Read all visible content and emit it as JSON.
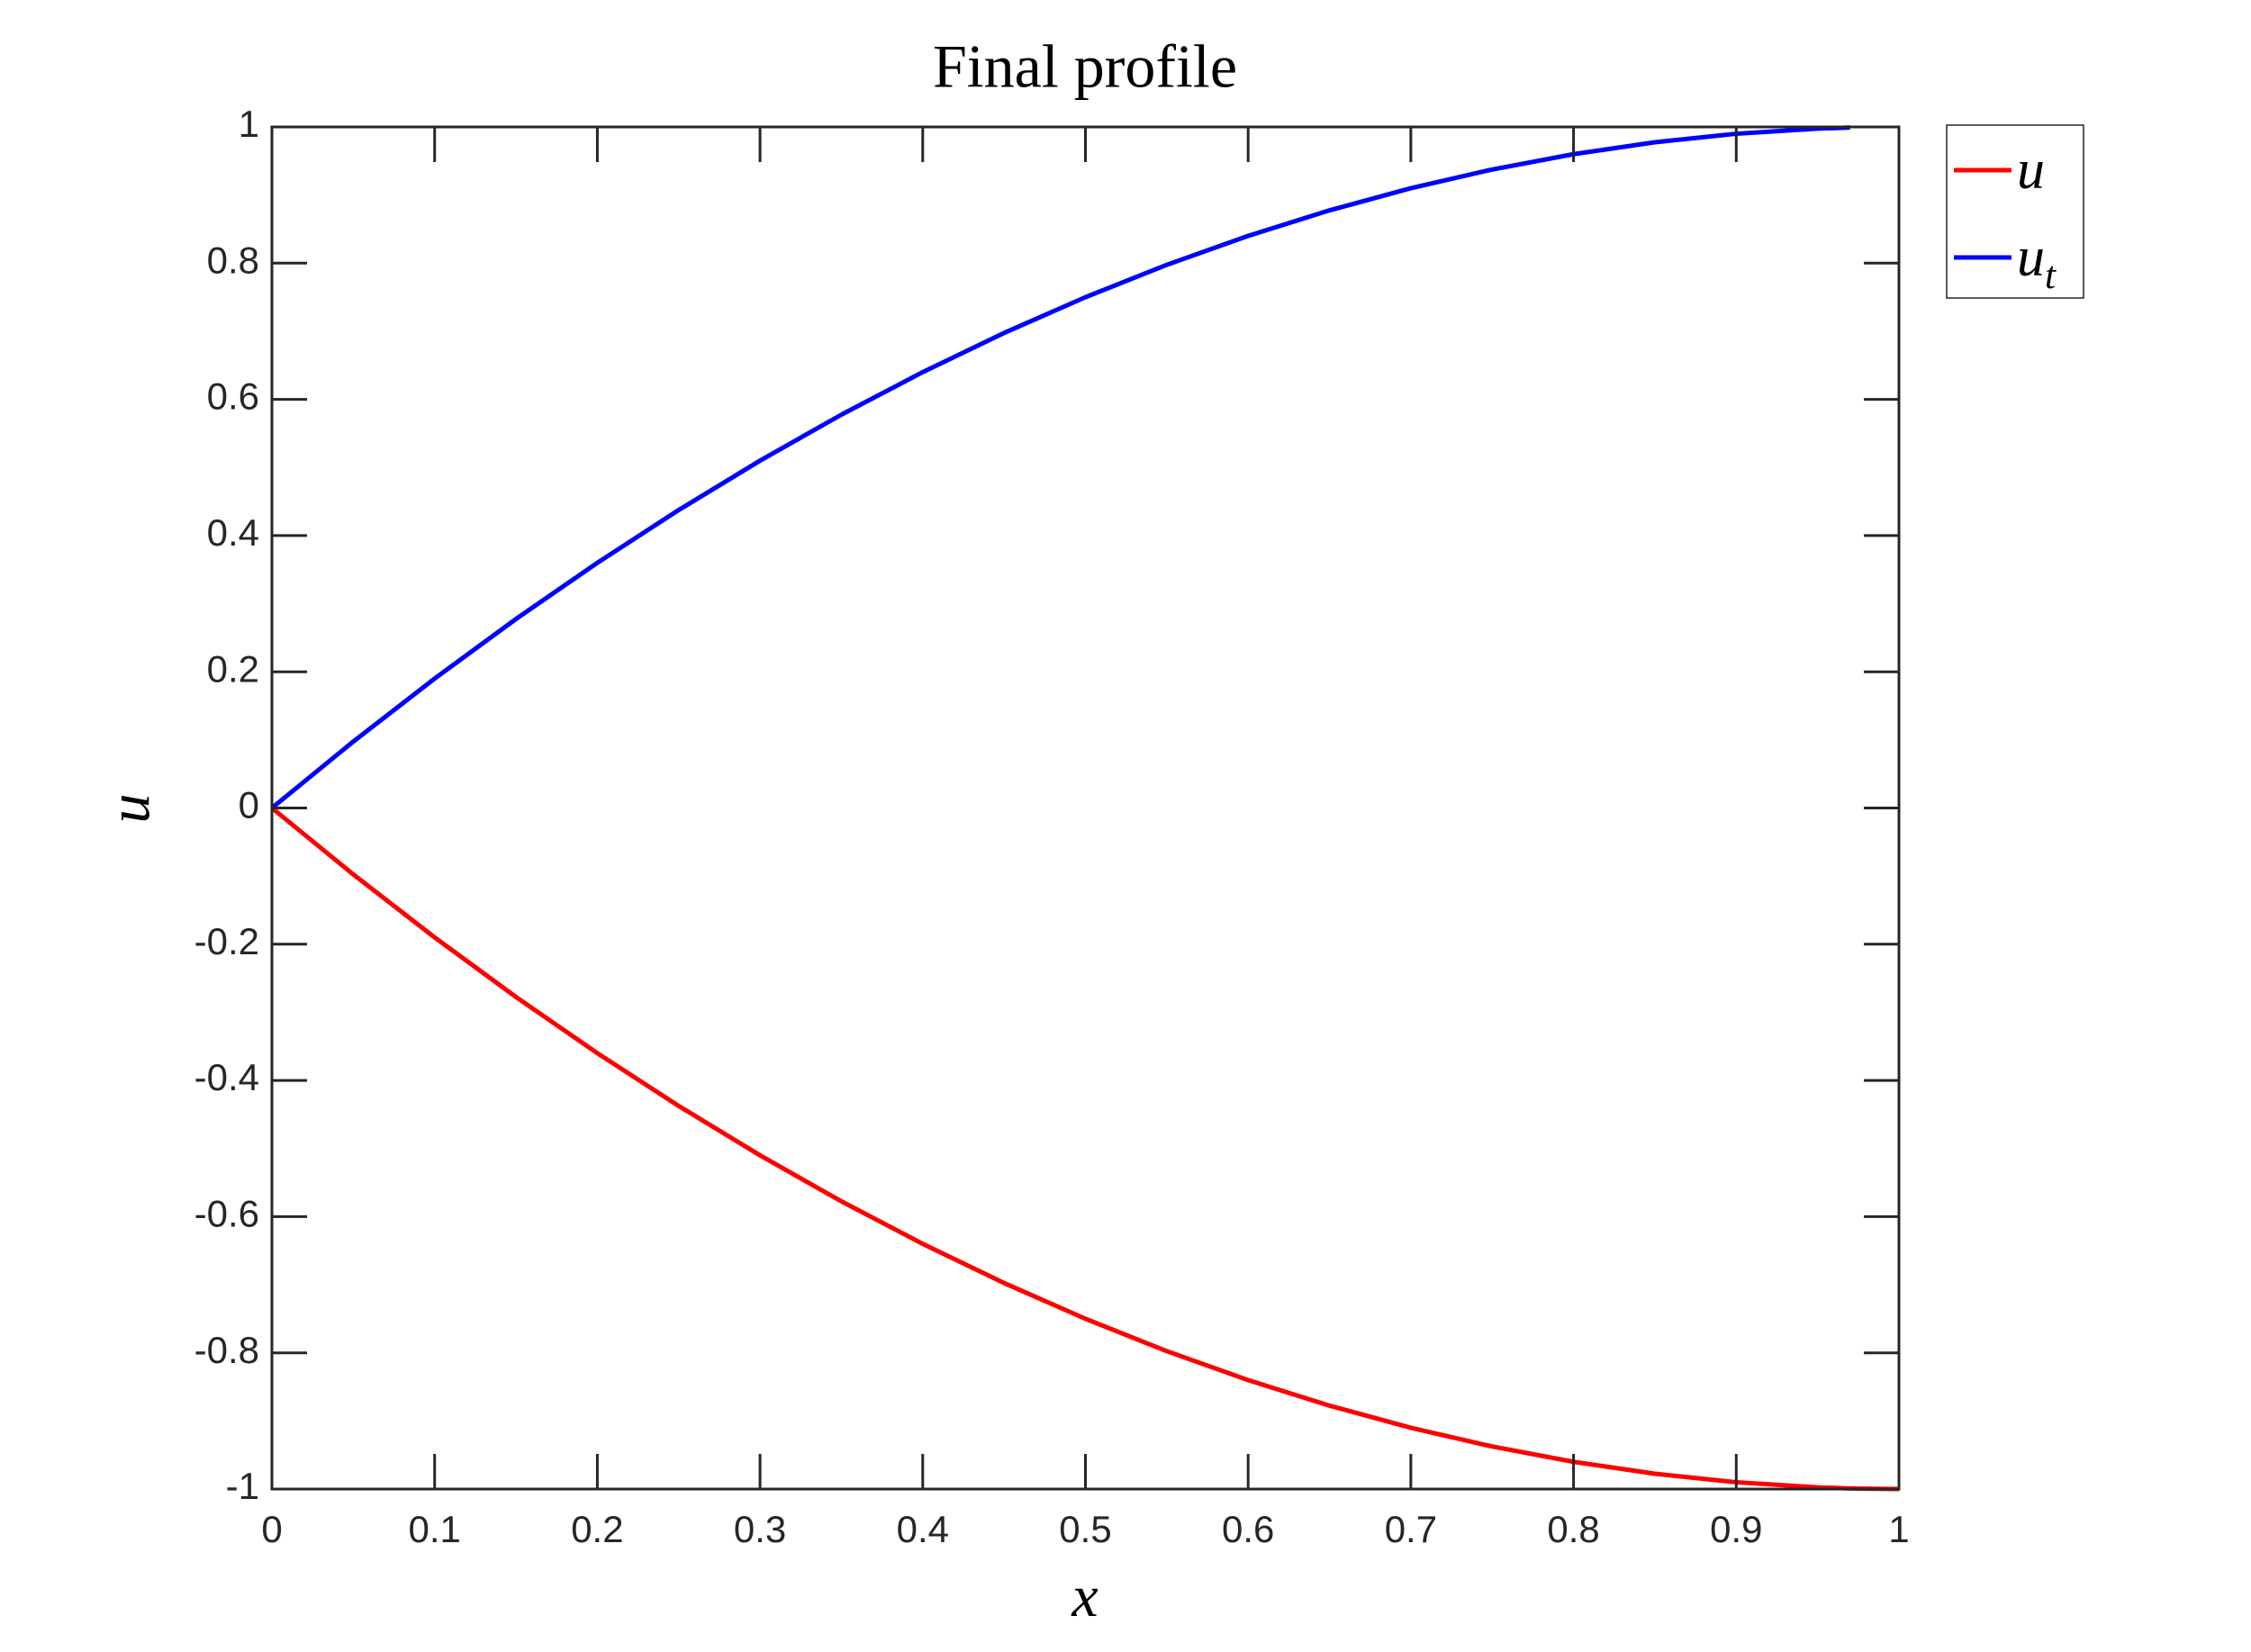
{
  "chart_data": {
    "type": "line",
    "title": "Final profile",
    "x_label": "x",
    "y_label": "u",
    "x": [
      0,
      0.05,
      0.1,
      0.15,
      0.2,
      0.25,
      0.3,
      0.35,
      0.4,
      0.45,
      0.5,
      0.55,
      0.6,
      0.65,
      0.7,
      0.75,
      0.8,
      0.85,
      0.9,
      0.95,
      0.97,
      1
    ],
    "series": [
      {
        "name": "u",
        "color": "#ff0000",
        "values": [
          0,
          -0.0975,
          -0.19,
          -0.2775,
          -0.36,
          -0.4375,
          -0.51,
          -0.5775,
          -0.64,
          -0.6975,
          -0.75,
          -0.7975,
          -0.84,
          -0.8775,
          -0.91,
          -0.9375,
          -0.96,
          -0.9775,
          -0.99,
          -0.9975,
          -0.9991,
          -1
        ]
      },
      {
        "name": "u_t",
        "color": "#0000ff",
        "values": [
          0,
          0.0975,
          0.19,
          0.2775,
          0.36,
          0.4375,
          0.51,
          0.5775,
          0.64,
          0.6975,
          0.75,
          0.7975,
          0.84,
          0.8775,
          0.91,
          0.9375,
          0.96,
          0.9775,
          0.99,
          0.9975,
          0.9991,
          null
        ]
      }
    ],
    "xlim": [
      0,
      1
    ],
    "xticks": [
      0,
      0.1,
      0.2,
      0.3,
      0.4,
      0.5,
      0.6,
      0.7,
      0.8,
      0.9,
      1
    ],
    "ylim": [
      -1,
      1
    ],
    "yticks": [
      -1,
      -0.8,
      -0.6,
      -0.4,
      -0.2,
      0,
      0.2,
      0.4,
      0.6,
      0.8,
      1
    ],
    "legend": "outside-upper-right"
  }
}
